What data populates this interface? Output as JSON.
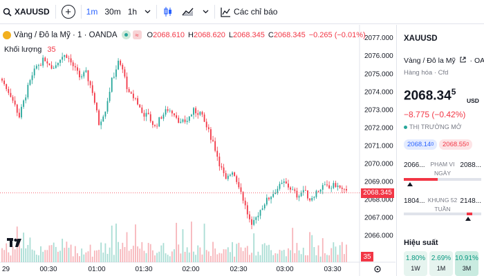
{
  "toolbar": {
    "symbol": "XAUUSD",
    "timeframes": [
      "1m",
      "30m",
      "1h"
    ],
    "active_timeframe": "1m",
    "indicators_label": "Các chỉ báo"
  },
  "legend": {
    "title": "Vàng / Đô la Mỹ · 1 · OANDA",
    "red_badge": "≈",
    "open_label": "O",
    "open": "2068.610",
    "high_label": "H",
    "high": "2068.620",
    "low_label": "L",
    "low": "2068.345",
    "close_label": "C",
    "close": "2068.345",
    "change": "−0.265 (−0.01%)",
    "volume_label": "Khối lượng",
    "volume": "35"
  },
  "chart": {
    "y_ticks": [
      "2077.000",
      "2076.000",
      "2075.000",
      "2074.000",
      "2073.000",
      "2072.000",
      "2071.000",
      "2070.000",
      "2069.000",
      "2068.000",
      "2067.000",
      "2066.000"
    ],
    "x_ticks": [
      "29",
      "00:30",
      "01:00",
      "01:30",
      "02:00",
      "02:30",
      "03:00",
      "03:30"
    ],
    "last_price": "2068.345",
    "last_volume": "35",
    "up_color": "#26a69a",
    "down_color": "#f23645"
  },
  "chart_data": {
    "type": "candlestick",
    "y_range": [
      2065.6,
      2077.2
    ],
    "x_tick_labels": [
      "29",
      "00:30",
      "01:00",
      "01:30",
      "02:00",
      "02:30",
      "03:00",
      "03:30"
    ],
    "close_path": [
      [
        0,
        2074.6
      ],
      [
        4,
        2073.8
      ],
      [
        8,
        2072.6
      ],
      [
        12,
        2074.2
      ],
      [
        16,
        2075.4
      ],
      [
        20,
        2075.8
      ],
      [
        24,
        2075.3
      ],
      [
        27,
        2075.9
      ],
      [
        30,
        2076.0
      ],
      [
        33,
        2075.4
      ],
      [
        36,
        2074.8
      ],
      [
        39,
        2075.0
      ],
      [
        42,
        2074.0
      ],
      [
        45,
        2072.2
      ],
      [
        48,
        2073.0
      ],
      [
        51,
        2074.6
      ],
      [
        54,
        2075.6
      ],
      [
        56,
        2075.2
      ],
      [
        59,
        2073.8
      ],
      [
        62,
        2073.6
      ],
      [
        65,
        2072.8
      ],
      [
        68,
        2072.6
      ],
      [
        71,
        2072.0
      ],
      [
        74,
        2072.6
      ],
      [
        77,
        2073.0
      ],
      [
        80,
        2072.8
      ],
      [
        83,
        2072.2
      ],
      [
        86,
        2072.4
      ],
      [
        89,
        2072.9
      ],
      [
        92,
        2072.8
      ],
      [
        95,
        2072.0
      ],
      [
        98,
        2071.2
      ],
      [
        101,
        2070.0
      ],
      [
        104,
        2069.0
      ],
      [
        107,
        2069.6
      ],
      [
        110,
        2068.8
      ],
      [
        113,
        2067.6
      ],
      [
        116,
        2066.4
      ],
      [
        119,
        2067.2
      ],
      [
        122,
        2067.8
      ],
      [
        125,
        2068.2
      ],
      [
        128,
        2068.6
      ],
      [
        131,
        2068.9
      ],
      [
        134,
        2068.6
      ],
      [
        137,
        2068.2
      ],
      [
        140,
        2068.5
      ],
      [
        143,
        2068.0
      ],
      [
        146,
        2068.4
      ],
      [
        149,
        2068.7
      ],
      [
        152,
        2068.6
      ],
      [
        155,
        2068.8
      ],
      [
        158,
        2068.5
      ],
      [
        160,
        2068.35
      ]
    ],
    "volume_level": "low, with a few spikes",
    "last_close": 2068.345
  },
  "details": {
    "symbol": "XAUUSD",
    "description": "Vàng / Đô la Mỹ",
    "exchange": "OANDA",
    "category": "Hàng hóa · Cfd",
    "price_main": "2068.34",
    "price_sup": "5",
    "currency": "USD",
    "change": "−8.775 (−0.42%)",
    "market_status": "THỊ TRƯỜNG MỞ",
    "bid": "2068.14",
    "bid_sup": "0",
    "ask": "2068.55",
    "ask_sup": "0",
    "day_low": "2066...",
    "day_high": "2088...",
    "day_range_label": "PHẠM VI NGÀY",
    "day_range_position": 0.08,
    "w52_low": "1804...",
    "w52_high": "2148...",
    "w52_label": "KHUNG 52 TUẦN",
    "w52_position": 0.83,
    "performance_title": "Hiệu suất",
    "performance": [
      {
        "value": "1.80%",
        "period": "1W"
      },
      {
        "value": "2.69%",
        "period": "1M"
      },
      {
        "value": "10.91%",
        "period": "3M"
      }
    ]
  }
}
